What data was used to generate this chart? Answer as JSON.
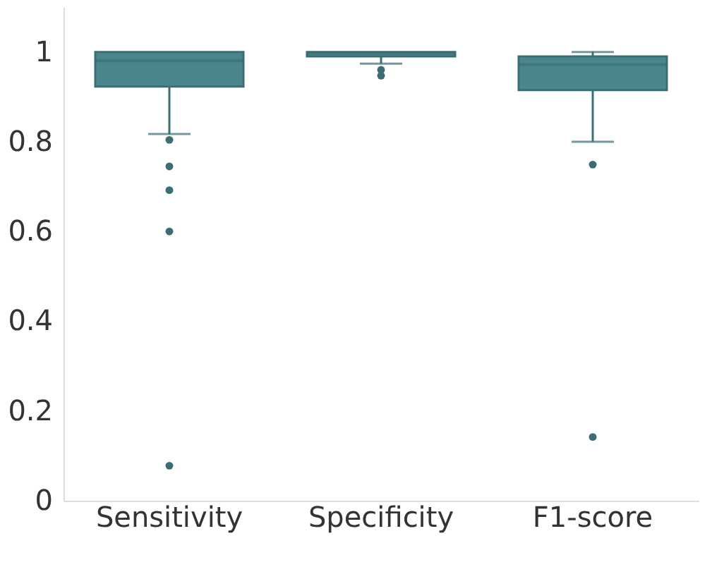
{
  "chart_data": {
    "type": "box",
    "categories": [
      "Sensitivity",
      "Specificity",
      "F1-score"
    ],
    "boxes": [
      {
        "low": 0.817,
        "q1": 0.923,
        "median": 0.98,
        "q3": 1.0,
        "high": 1.0,
        "outliers": [
          0.804,
          0.745,
          0.692,
          0.6,
          0.078
        ]
      },
      {
        "low": 0.974,
        "q1": 0.99,
        "median": 0.997,
        "q3": 1.0,
        "high": 1.0,
        "outliers": [
          0.96,
          0.947
        ]
      },
      {
        "low": 0.8,
        "q1": 0.915,
        "median": 0.972,
        "q3": 0.99,
        "high": 1.0,
        "outliers": [
          0.749,
          0.142
        ]
      }
    ],
    "color": "#4a868c",
    "ylim": [
      0,
      1.1
    ],
    "yticks": [
      0,
      0.2,
      0.4,
      0.6,
      0.8,
      1
    ],
    "grid": false
  }
}
